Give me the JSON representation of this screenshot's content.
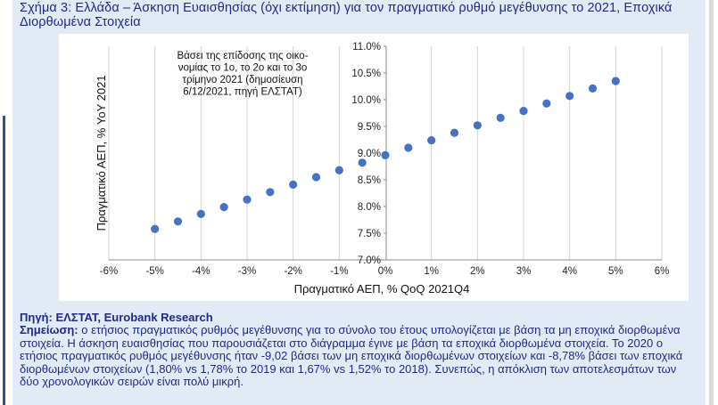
{
  "figure": {
    "title": "Σχήμα 3: Ελλάδα – Άσκηση Ευαισθησίας (όχι εκτίμηση) για τον πραγματικό ρυθμό μεγέθυνσης το 2021, Εποχικά Διορθωμένα Στοιχεία"
  },
  "chart_data": {
    "type": "scatter",
    "xlabel": "Πραγματικό ΑΕΠ, % QoQ 2021Q4",
    "ylabel": "Πραγματικό ΑΕΠ, % YoY 2021",
    "xlim": [
      -6,
      6
    ],
    "ylim": [
      7.0,
      11.0
    ],
    "x_ticks": [
      "-6%",
      "-5%",
      "-4%",
      "-3%",
      "-2%",
      "-1%",
      "0%",
      "1%",
      "2%",
      "3%",
      "4%",
      "5%",
      "6%"
    ],
    "y_ticks": [
      "7.0%",
      "7.5%",
      "8.0%",
      "8.5%",
      "9.0%",
      "9.5%",
      "10.0%",
      "10.5%",
      "11.0%"
    ],
    "grid": "vertical",
    "annotation": "Βάσει της επίδοσης της οικο- νομίας το 1ο, το 2ο και το 3ο τρίμηνο 2021 (δημοσίευση 6/12/2021, πηγή ΕΛΣΤΑΤ)",
    "annotation_lines": [
      "Βάσει της επίδοσης της οικο-",
      "νομίας το 1ο, το 2ο και το 3ο",
      "τρίμηνο 2021 (δημοσίευση",
      "6/12/2021, πηγή ΕΛΣΤΑΤ)"
    ],
    "marker_color": "#4472c4",
    "x": [
      -5.0,
      -4.5,
      -4.0,
      -3.5,
      -3.0,
      -2.5,
      -2.0,
      -1.5,
      -1.0,
      -0.5,
      0.0,
      0.5,
      1.0,
      1.5,
      2.0,
      2.5,
      3.0,
      3.5,
      4.0,
      4.5,
      5.0
    ],
    "y": [
      7.58,
      7.72,
      7.86,
      7.99,
      8.13,
      8.27,
      8.41,
      8.55,
      8.68,
      8.82,
      8.96,
      9.1,
      9.24,
      9.38,
      9.52,
      9.66,
      9.79,
      9.93,
      10.07,
      10.21,
      10.35
    ]
  },
  "footer": {
    "source_label": "Πηγή: ΕΛΣΤΑΤ, Eurobank Research",
    "note_label": "Σημείωση:",
    "note_text": "ο ετήσιος πραγματικός ρυθμός μεγέθυνσης για το σύνολο του έτους υπολογίζεται με βάση τα μη εποχικά διορθωμένα στοιχεία. Η άσκηση ευαισθησίας που παρουσιάζεται στο διάγραμμα έγινε με βάση τα εποχικά διορθωμένα στοιχεία. Το 2020 ο ετήσιος πραγματικός ρυθμός μεγέθυνσης ήταν -9,02 βάσει των μη εποχικά διορθωμένων στοιχείων και -8,78% βάσει των εποχικά διορθωμένων στοιχείων (1,80% vs 1,78% το 2019 και 1,67% vs 1,52% το 2018). Συνεπώς, η απόκλιση των αποτελεσμάτων των δύο χρονολογικών σειρών είναι πολύ μικρή."
  }
}
